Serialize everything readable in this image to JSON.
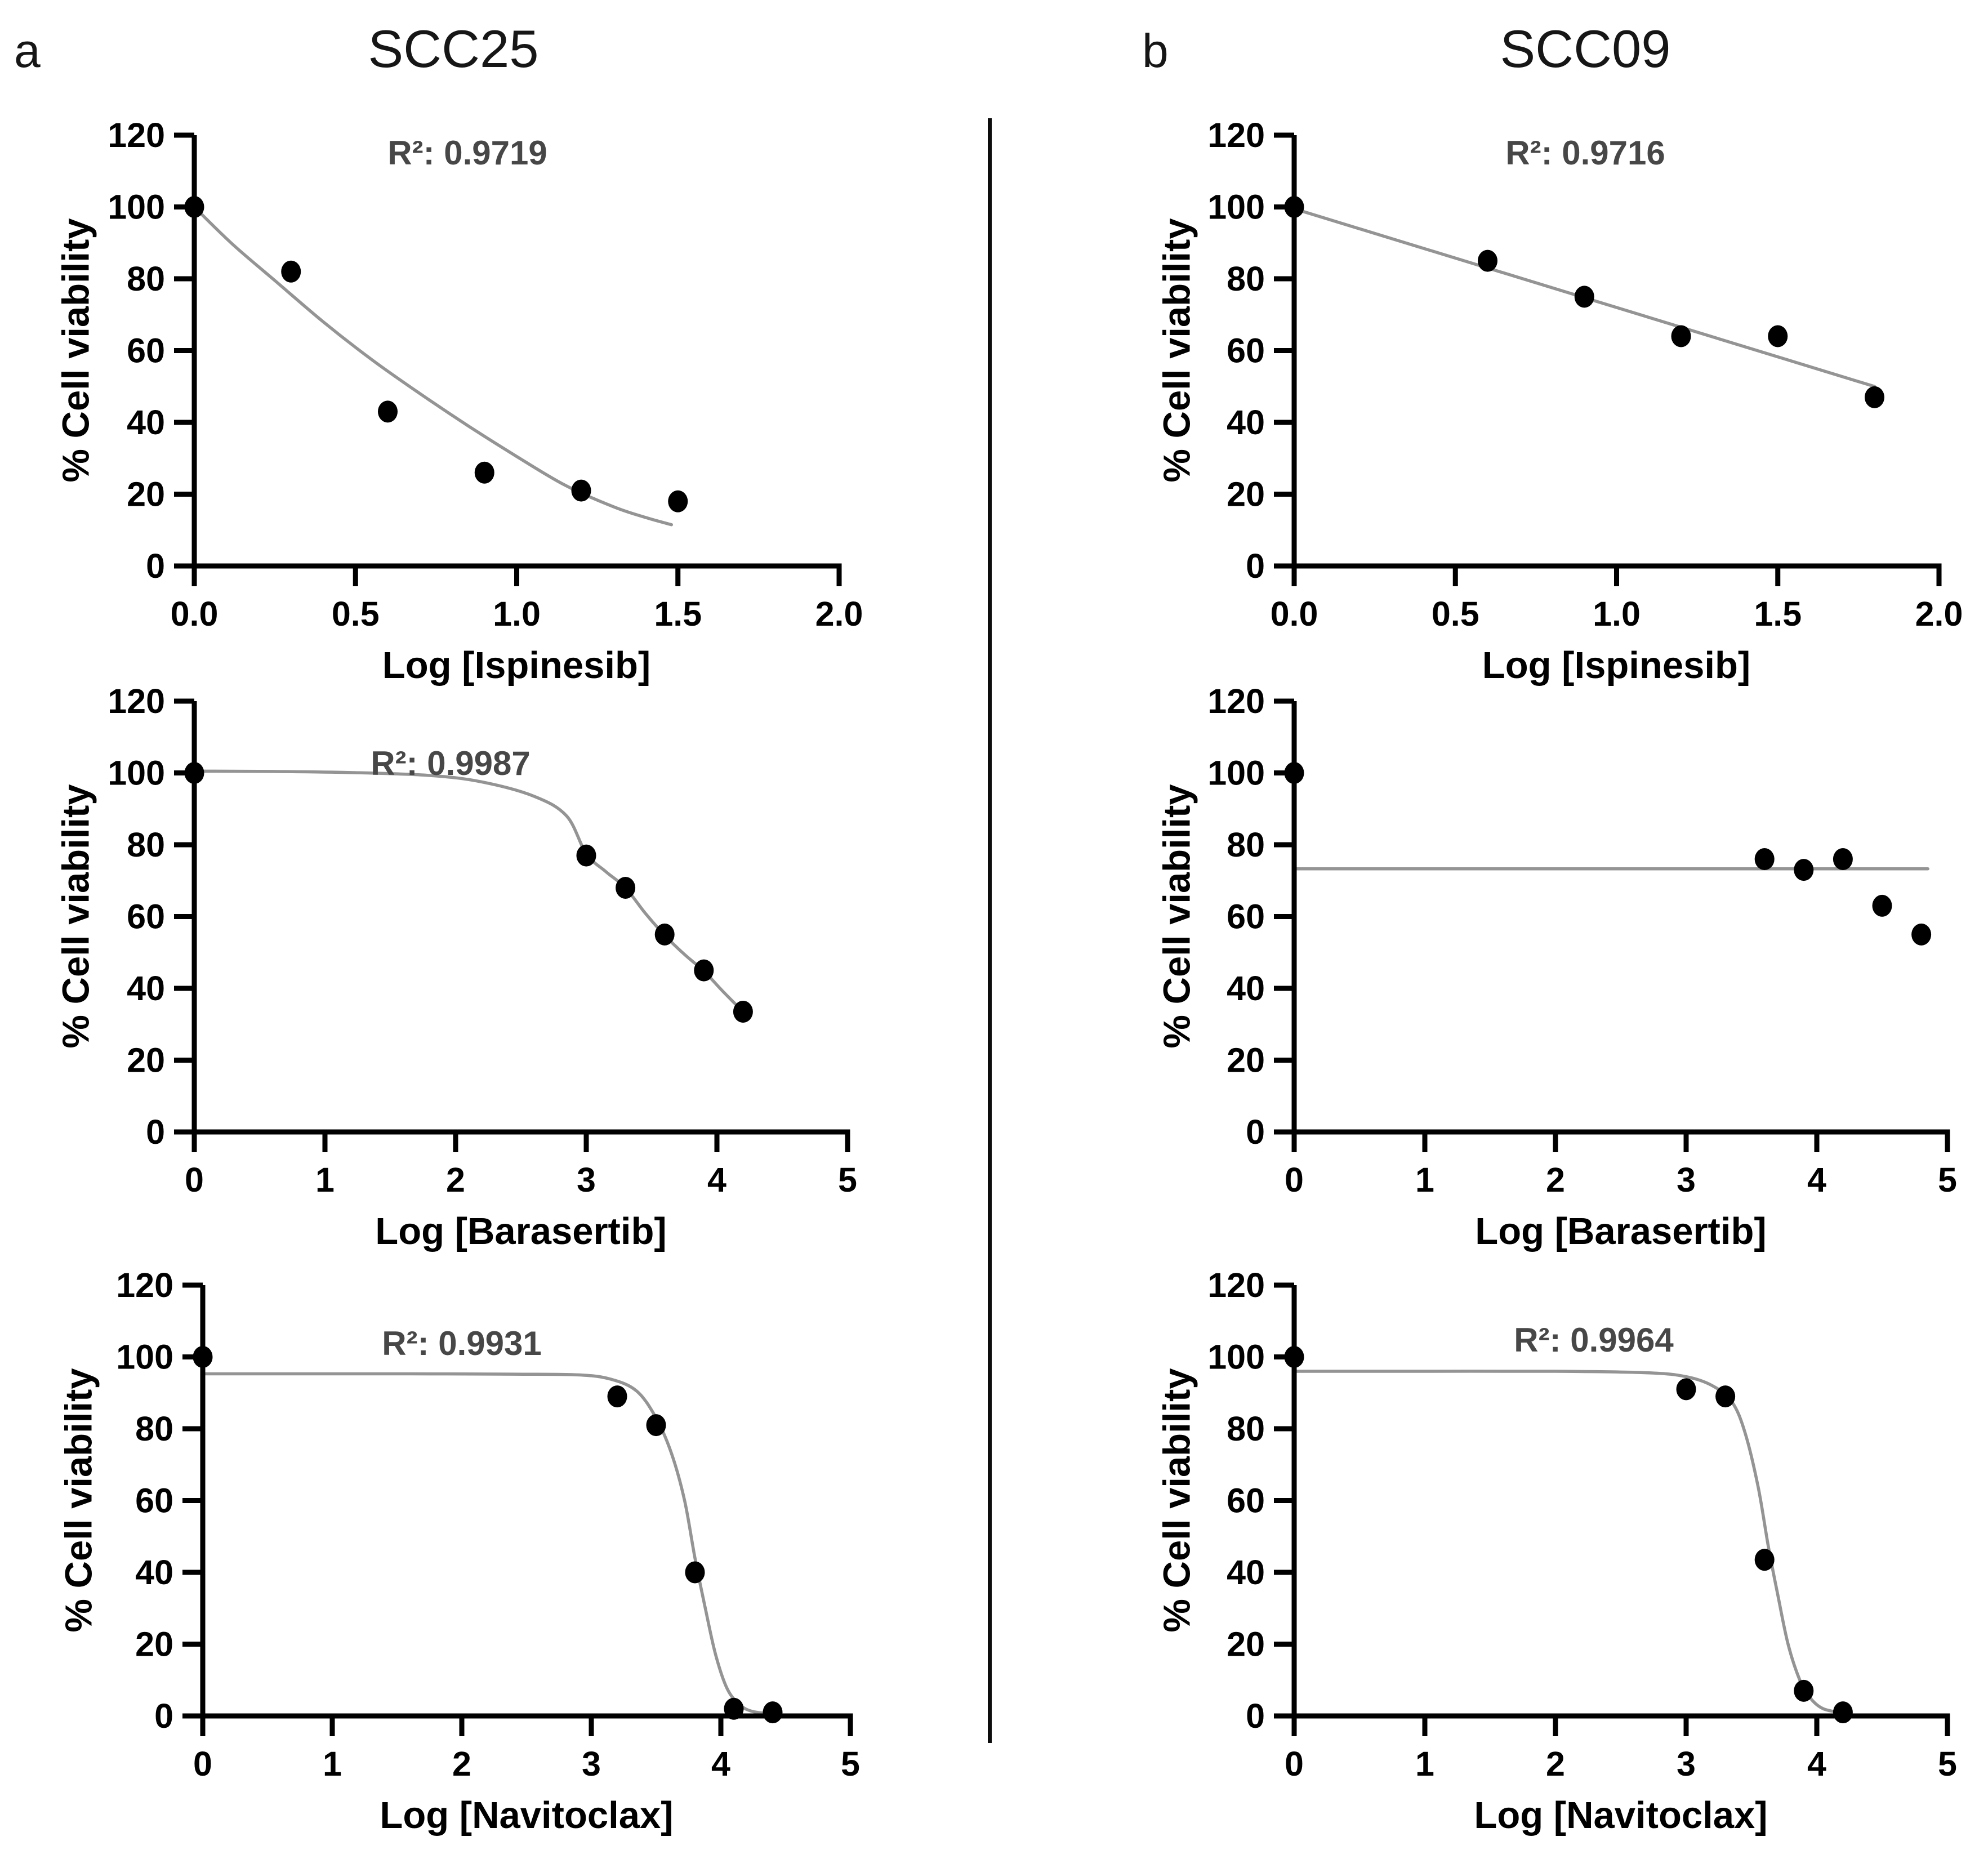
{
  "figure": {
    "panels": [
      {
        "letter": "a",
        "title": "SCC25"
      },
      {
        "letter": "b",
        "title": "SCC09"
      }
    ]
  },
  "colors": {
    "axis": "#000000",
    "point": "#000000",
    "curve": "#949494",
    "r2_text": "#474747",
    "tick_text": "#000000",
    "divider": "#0d0d0d"
  },
  "chart_data": [
    {
      "type": "scatter",
      "cell_line": "SCC25",
      "drug": "Ispinesib",
      "xlabel": "Log [Ispinesib]",
      "ylabel": "% Cell viability",
      "r2": 0.9719,
      "r2_label": "R²: 0.9719",
      "fit_type": "one-phase decay",
      "xlim": [
        0,
        2
      ],
      "ylim": [
        0,
        120
      ],
      "x_tick_values": [
        0,
        0.5,
        1.0,
        1.5,
        2.0
      ],
      "x_tick_labels": [
        "0.0",
        "0.5",
        "1.0",
        "1.5",
        "2.0"
      ],
      "y_tick_values": [
        0,
        20,
        40,
        60,
        80,
        100,
        120
      ],
      "y_tick_labels": [
        "0",
        "20",
        "40",
        "60",
        "80",
        "100",
        "120"
      ],
      "points": [
        [
          0,
          100
        ],
        [
          0.3,
          82
        ],
        [
          0.6,
          43
        ],
        [
          0.9,
          26
        ],
        [
          1.2,
          21
        ],
        [
          1.5,
          18
        ]
      ],
      "fit_curve": [
        [
          0,
          100
        ],
        [
          0.12,
          89.5
        ],
        [
          0.25,
          79.5
        ],
        [
          0.4,
          68
        ],
        [
          0.55,
          57.5
        ],
        [
          0.7,
          48
        ],
        [
          0.85,
          39
        ],
        [
          1.0,
          30.5
        ],
        [
          1.15,
          22.5
        ],
        [
          1.3,
          16.5
        ],
        [
          1.4,
          13.5
        ],
        [
          1.48,
          11.5
        ]
      ]
    },
    {
      "type": "scatter",
      "cell_line": "SCC09",
      "drug": "Ispinesib",
      "xlabel": "Log [Ispinesib]",
      "ylabel": "% Cell viability",
      "r2": 0.9716,
      "r2_label": "R²: 0.9716",
      "fit_type": "linear",
      "xlim": [
        0,
        2
      ],
      "ylim": [
        0,
        120
      ],
      "x_tick_values": [
        0,
        0.5,
        1.0,
        1.5,
        2.0
      ],
      "x_tick_labels": [
        "0.0",
        "0.5",
        "1.0",
        "1.5",
        "2.0"
      ],
      "y_tick_values": [
        0,
        20,
        40,
        60,
        80,
        100,
        120
      ],
      "y_tick_labels": [
        "0",
        "20",
        "40",
        "60",
        "80",
        "100",
        "120"
      ],
      "points": [
        [
          0,
          100
        ],
        [
          0.6,
          85
        ],
        [
          0.9,
          75
        ],
        [
          1.2,
          64
        ],
        [
          1.5,
          64
        ],
        [
          1.8,
          47
        ]
      ],
      "fit_curve": [
        [
          0,
          99.5
        ],
        [
          1.8,
          50
        ]
      ]
    },
    {
      "type": "scatter",
      "cell_line": "SCC25",
      "drug": "Barasertib",
      "xlabel": "Log [Barasertib]",
      "ylabel": "% Cell viability",
      "r2": 0.9987,
      "r2_label": "R²: 0.9987",
      "fit_type": "sigmoidal dose-response",
      "xlim": [
        0,
        5
      ],
      "ylim": [
        0,
        120
      ],
      "x_tick_values": [
        0,
        1,
        2,
        3,
        4,
        5
      ],
      "x_tick_labels": [
        "0",
        "1",
        "2",
        "3",
        "4",
        "5"
      ],
      "y_tick_values": [
        0,
        20,
        40,
        60,
        80,
        100,
        120
      ],
      "y_tick_labels": [
        "0",
        "20",
        "40",
        "60",
        "80",
        "100",
        "120"
      ],
      "points": [
        [
          0,
          100
        ],
        [
          3.0,
          77
        ],
        [
          3.3,
          68
        ],
        [
          3.6,
          55
        ],
        [
          3.9,
          45
        ],
        [
          4.2,
          33.5
        ]
      ],
      "fit_curve": [
        [
          0,
          100.5
        ],
        [
          0.6,
          100.4
        ],
        [
          1.2,
          100.1
        ],
        [
          1.8,
          99.3
        ],
        [
          2.2,
          97.5
        ],
        [
          2.6,
          93.5
        ],
        [
          2.85,
          88
        ],
        [
          3.0,
          77.5
        ],
        [
          3.15,
          72.5
        ],
        [
          3.3,
          68
        ],
        [
          3.45,
          61
        ],
        [
          3.6,
          54.8
        ],
        [
          3.75,
          49.5
        ],
        [
          3.9,
          44.8
        ],
        [
          4.05,
          39
        ],
        [
          4.2,
          33.5
        ]
      ]
    },
    {
      "type": "scatter",
      "cell_line": "SCC09",
      "drug": "Barasertib",
      "xlabel": "Log [Barasertib]",
      "ylabel": "% Cell viability",
      "r2": null,
      "r2_label": "",
      "fit_type": "flat",
      "xlim": [
        0,
        5
      ],
      "ylim": [
        0,
        120
      ],
      "x_tick_values": [
        0,
        1,
        2,
        3,
        4,
        5
      ],
      "x_tick_labels": [
        "0",
        "1",
        "2",
        "3",
        "4",
        "5"
      ],
      "y_tick_values": [
        0,
        20,
        40,
        60,
        80,
        100,
        120
      ],
      "y_tick_labels": [
        "0",
        "20",
        "40",
        "60",
        "80",
        "100",
        "120"
      ],
      "points": [
        [
          0,
          100
        ],
        [
          3.6,
          76
        ],
        [
          3.9,
          73
        ],
        [
          4.2,
          76
        ],
        [
          4.5,
          63
        ],
        [
          4.8,
          55
        ]
      ],
      "fit_curve": [
        [
          0,
          73.3
        ],
        [
          4.85,
          73.3
        ]
      ]
    },
    {
      "type": "scatter",
      "cell_line": "SCC25",
      "drug": "Navitoclax",
      "xlabel": "Log [Navitoclax]",
      "ylabel": "% Cell viability",
      "r2": 0.9931,
      "r2_label": "R²: 0.9931",
      "fit_type": "sigmoidal dose-response",
      "xlim": [
        0,
        5
      ],
      "ylim": [
        0,
        120
      ],
      "x_tick_values": [
        0,
        1,
        2,
        3,
        4,
        5
      ],
      "x_tick_labels": [
        "0",
        "1",
        "2",
        "3",
        "4",
        "5"
      ],
      "y_tick_values": [
        0,
        20,
        40,
        60,
        80,
        100,
        120
      ],
      "y_tick_labels": [
        "0",
        "20",
        "40",
        "60",
        "80",
        "100",
        "120"
      ],
      "points": [
        [
          0,
          100
        ],
        [
          3.2,
          89
        ],
        [
          3.5,
          81
        ],
        [
          3.8,
          40
        ],
        [
          4.1,
          2
        ],
        [
          4.4,
          1
        ]
      ],
      "fit_curve": [
        [
          0,
          95.3
        ],
        [
          0.8,
          95.3
        ],
        [
          1.6,
          95.3
        ],
        [
          2.4,
          95.2
        ],
        [
          2.9,
          95
        ],
        [
          3.15,
          93.8
        ],
        [
          3.35,
          90.5
        ],
        [
          3.5,
          83
        ],
        [
          3.62,
          73
        ],
        [
          3.72,
          60
        ],
        [
          3.8,
          44
        ],
        [
          3.88,
          30
        ],
        [
          3.96,
          17
        ],
        [
          4.05,
          7.5
        ],
        [
          4.15,
          3
        ],
        [
          4.25,
          1.2
        ],
        [
          4.4,
          0.6
        ]
      ]
    },
    {
      "type": "scatter",
      "cell_line": "SCC09",
      "drug": "Navitoclax",
      "xlabel": "Log [Navitoclax]",
      "ylabel": "% Cell viability",
      "r2": 0.9964,
      "r2_label": "R²: 0.9964",
      "fit_type": "sigmoidal dose-response",
      "xlim": [
        0,
        5
      ],
      "ylim": [
        0,
        120
      ],
      "x_tick_values": [
        0,
        1,
        2,
        3,
        4,
        5
      ],
      "x_tick_labels": [
        "0",
        "1",
        "2",
        "3",
        "4",
        "5"
      ],
      "y_tick_values": [
        0,
        20,
        40,
        60,
        80,
        100,
        120
      ],
      "y_tick_labels": [
        "0",
        "20",
        "40",
        "60",
        "80",
        "100",
        "120"
      ],
      "points": [
        [
          0,
          100
        ],
        [
          3.0,
          91
        ],
        [
          3.3,
          89
        ],
        [
          3.6,
          43.5
        ],
        [
          3.9,
          7
        ],
        [
          4.2,
          1
        ]
      ],
      "fit_curve": [
        [
          0,
          96
        ],
        [
          1,
          96
        ],
        [
          2,
          96
        ],
        [
          2.7,
          95.6
        ],
        [
          3.0,
          94.5
        ],
        [
          3.2,
          92
        ],
        [
          3.35,
          87.5
        ],
        [
          3.45,
          79
        ],
        [
          3.55,
          64
        ],
        [
          3.63,
          47
        ],
        [
          3.7,
          34
        ],
        [
          3.78,
          20
        ],
        [
          3.87,
          10
        ],
        [
          3.95,
          5
        ],
        [
          4.05,
          2
        ],
        [
          4.2,
          0.8
        ]
      ]
    }
  ]
}
